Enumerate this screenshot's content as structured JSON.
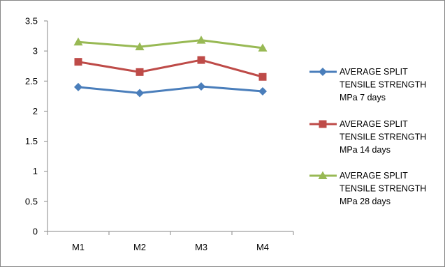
{
  "chart_data": {
    "type": "line",
    "categories": [
      "M1",
      "M2",
      "M3",
      "M4"
    ],
    "y_ticks": [
      "0",
      "0.5",
      "1",
      "1.5",
      "2",
      "2.5",
      "3",
      "3.5"
    ],
    "ylim": [
      0,
      3.5
    ],
    "grid": false,
    "legend_position": "right",
    "series": [
      {
        "name_lines": [
          "AVERAGE SPLIT",
          "TENSILE STRENGTH",
          "MPa 7 days"
        ],
        "values": [
          2.4,
          2.3,
          2.41,
          2.33
        ],
        "color": "#4a7ebb",
        "marker": "diamond"
      },
      {
        "name_lines": [
          "AVERAGE SPLIT",
          "TENSILE STRENGTH",
          "MPa 14 days"
        ],
        "values": [
          2.82,
          2.65,
          2.85,
          2.57
        ],
        "color": "#be4b48",
        "marker": "square"
      },
      {
        "name_lines": [
          "AVERAGE SPLIT",
          "TENSILE STRENGTH",
          "MPa 28 days"
        ],
        "values": [
          3.15,
          3.07,
          3.18,
          3.05
        ],
        "color": "#98b954",
        "marker": "triangle"
      }
    ]
  }
}
